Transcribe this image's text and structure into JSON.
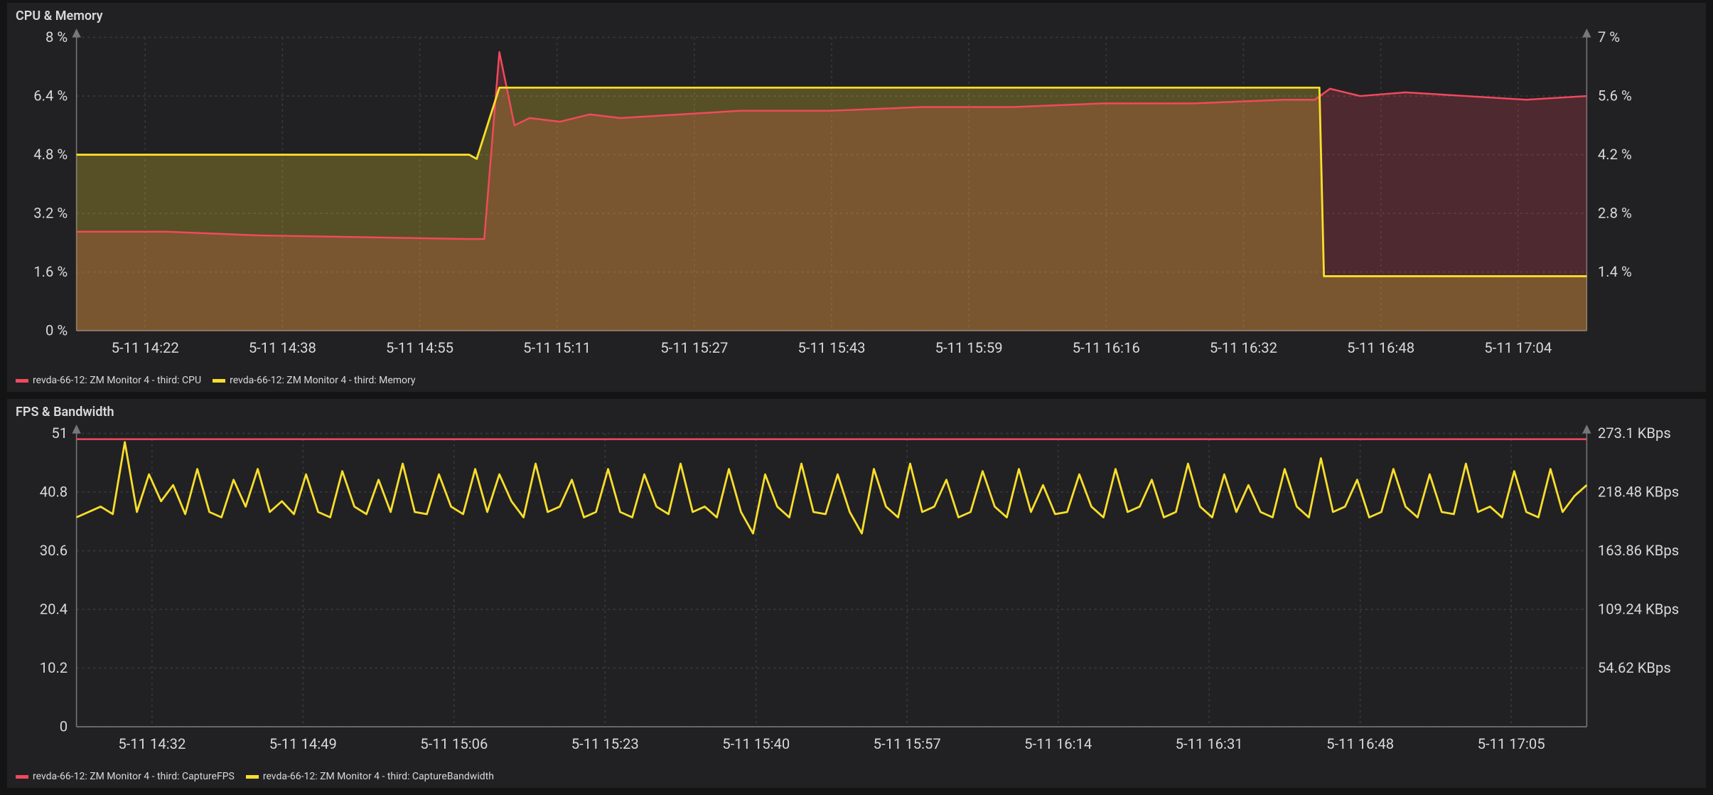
{
  "colors": {
    "background": "#141414",
    "panel_bg": "#212124",
    "text": "#d8d9da",
    "grid": "#3a3a3d",
    "axis": "#777779",
    "series_red": "#f2495c",
    "series_red_fill": "rgba(242,73,92,0.22)",
    "series_yellow": "#fade2a",
    "series_yellow_fill": "rgba(250,222,42,0.25)"
  },
  "chart1": {
    "title": "CPU & Memory",
    "type": "area",
    "x_ticks": [
      "5-11 14:22",
      "5-11 14:38",
      "5-11 14:55",
      "5-11 15:11",
      "5-11 15:27",
      "5-11 15:43",
      "5-11 15:59",
      "5-11 16:16",
      "5-11 16:32",
      "5-11 16:48",
      "5-11 17:04"
    ],
    "left_axis": {
      "label_suffix": " %",
      "ticks": [
        "0 %",
        "1.6 %",
        "3.2 %",
        "4.8 %",
        "6.4 %",
        "8 %"
      ],
      "min": 0,
      "max": 8
    },
    "right_axis": {
      "label_suffix": " %",
      "ticks": [
        "1.4 %",
        "2.8 %",
        "4.2 %",
        "5.6 %",
        "7 %"
      ],
      "min": 0,
      "max": 7
    },
    "legend": [
      {
        "label": "revda-66-12: ZM Monitor 4 - third: CPU",
        "color_key": "series_red"
      },
      {
        "label": "revda-66-12: ZM Monitor 4 - third: Memory",
        "color_key": "series_yellow"
      }
    ],
    "series": [
      {
        "name": "cpu",
        "axis": "left",
        "color_key": "series_red",
        "fill_key": "series_red_fill",
        "line_width": 1.6,
        "data": [
          [
            0,
            2.7
          ],
          [
            6,
            2.7
          ],
          [
            12,
            2.6
          ],
          [
            26,
            2.5
          ],
          [
            27,
            2.5
          ],
          [
            28,
            7.6
          ],
          [
            29,
            5.6
          ],
          [
            30,
            5.8
          ],
          [
            32,
            5.7
          ],
          [
            34,
            5.9
          ],
          [
            36,
            5.8
          ],
          [
            40,
            5.9
          ],
          [
            44,
            6.0
          ],
          [
            50,
            6.0
          ],
          [
            56,
            6.1
          ],
          [
            62,
            6.1
          ],
          [
            68,
            6.2
          ],
          [
            74,
            6.2
          ],
          [
            80,
            6.3
          ],
          [
            82,
            6.3
          ],
          [
            83,
            6.6
          ],
          [
            85,
            6.4
          ],
          [
            88,
            6.5
          ],
          [
            92,
            6.4
          ],
          [
            96,
            6.3
          ],
          [
            100,
            6.4
          ]
        ]
      },
      {
        "name": "memory",
        "axis": "right",
        "color_key": "series_yellow",
        "fill_key": "series_yellow_fill",
        "line_width": 1.8,
        "data": [
          [
            0,
            4.2
          ],
          [
            26,
            4.2
          ],
          [
            26.5,
            4.1
          ],
          [
            28,
            5.8
          ],
          [
            28.5,
            5.8
          ],
          [
            82,
            5.8
          ],
          [
            82.3,
            5.8
          ],
          [
            82.6,
            1.3
          ],
          [
            100,
            1.3
          ]
        ]
      }
    ]
  },
  "chart2": {
    "title": "FPS & Bandwidth",
    "type": "line",
    "x_ticks": [
      "5-11 14:32",
      "5-11 14:49",
      "5-11 15:06",
      "5-11 15:23",
      "5-11 15:40",
      "5-11 15:57",
      "5-11 16:14",
      "5-11 16:31",
      "5-11 16:48",
      "5-11 17:05"
    ],
    "left_axis": {
      "ticks": [
        "0",
        "10.2",
        "20.4",
        "30.6",
        "40.8",
        "51"
      ],
      "min": 0,
      "max": 51
    },
    "right_axis": {
      "ticks": [
        "54.62 KBps",
        "109.24 KBps",
        "163.86 KBps",
        "218.48 KBps",
        "273.1 KBps"
      ],
      "min": 0,
      "max": 273.1
    },
    "legend": [
      {
        "label": "revda-66-12: ZM Monitor 4 - third: CaptureFPS",
        "color_key": "series_red"
      },
      {
        "label": "revda-66-12: ZM Monitor 4 - third: CaptureBandwidth",
        "color_key": "series_yellow"
      }
    ],
    "series": [
      {
        "name": "fps",
        "axis": "left",
        "color_key": "series_red",
        "line_width": 1.6,
        "data": [
          [
            0,
            50
          ],
          [
            10,
            50
          ],
          [
            20,
            50
          ],
          [
            30,
            50
          ],
          [
            40,
            50
          ],
          [
            50,
            50
          ],
          [
            60,
            50
          ],
          [
            70,
            50
          ],
          [
            80,
            50
          ],
          [
            90,
            50
          ],
          [
            100,
            50
          ]
        ]
      },
      {
        "name": "bandwidth",
        "axis": "right",
        "color_key": "series_yellow",
        "line_width": 1.8,
        "data": [
          [
            0,
            195
          ],
          [
            0.8,
            200
          ],
          [
            1.6,
            205
          ],
          [
            2.4,
            198
          ],
          [
            3.2,
            265
          ],
          [
            4,
            200
          ],
          [
            4.8,
            235
          ],
          [
            5.6,
            210
          ],
          [
            6.4,
            225
          ],
          [
            7.2,
            198
          ],
          [
            8,
            240
          ],
          [
            8.8,
            200
          ],
          [
            9.6,
            195
          ],
          [
            10.4,
            230
          ],
          [
            11.2,
            205
          ],
          [
            12,
            240
          ],
          [
            12.8,
            200
          ],
          [
            13.6,
            210
          ],
          [
            14.4,
            198
          ],
          [
            15.2,
            235
          ],
          [
            16,
            200
          ],
          [
            16.8,
            195
          ],
          [
            17.6,
            238
          ],
          [
            18.4,
            205
          ],
          [
            19.2,
            198
          ],
          [
            20,
            230
          ],
          [
            20.8,
            200
          ],
          [
            21.6,
            245
          ],
          [
            22.4,
            200
          ],
          [
            23.2,
            198
          ],
          [
            24,
            235
          ],
          [
            24.8,
            205
          ],
          [
            25.6,
            198
          ],
          [
            26.4,
            240
          ],
          [
            27.2,
            200
          ],
          [
            28,
            235
          ],
          [
            28.8,
            210
          ],
          [
            29.6,
            195
          ],
          [
            30.4,
            245
          ],
          [
            31.2,
            200
          ],
          [
            32,
            205
          ],
          [
            32.8,
            230
          ],
          [
            33.6,
            195
          ],
          [
            34.4,
            200
          ],
          [
            35.2,
            240
          ],
          [
            36,
            200
          ],
          [
            36.8,
            195
          ],
          [
            37.6,
            235
          ],
          [
            38.4,
            205
          ],
          [
            39.2,
            198
          ],
          [
            40,
            245
          ],
          [
            40.8,
            200
          ],
          [
            41.6,
            205
          ],
          [
            42.4,
            195
          ],
          [
            43.2,
            240
          ],
          [
            44,
            200
          ],
          [
            44.8,
            180
          ],
          [
            45.6,
            235
          ],
          [
            46.4,
            205
          ],
          [
            47.2,
            195
          ],
          [
            48,
            245
          ],
          [
            48.8,
            200
          ],
          [
            49.6,
            198
          ],
          [
            50.4,
            235
          ],
          [
            51.2,
            200
          ],
          [
            52,
            180
          ],
          [
            52.8,
            240
          ],
          [
            53.6,
            205
          ],
          [
            54.4,
            195
          ],
          [
            55.2,
            245
          ],
          [
            56,
            200
          ],
          [
            56.8,
            205
          ],
          [
            57.6,
            230
          ],
          [
            58.4,
            195
          ],
          [
            59.2,
            200
          ],
          [
            60,
            238
          ],
          [
            60.8,
            205
          ],
          [
            61.6,
            195
          ],
          [
            62.4,
            240
          ],
          [
            63.2,
            200
          ],
          [
            64,
            225
          ],
          [
            64.8,
            198
          ],
          [
            65.6,
            200
          ],
          [
            66.4,
            235
          ],
          [
            67.2,
            205
          ],
          [
            68,
            195
          ],
          [
            68.8,
            240
          ],
          [
            69.6,
            200
          ],
          [
            70.4,
            205
          ],
          [
            71.2,
            230
          ],
          [
            72,
            195
          ],
          [
            72.8,
            200
          ],
          [
            73.6,
            245
          ],
          [
            74.4,
            205
          ],
          [
            75.2,
            195
          ],
          [
            76,
            235
          ],
          [
            76.8,
            200
          ],
          [
            77.6,
            225
          ],
          [
            78.4,
            200
          ],
          [
            79.2,
            195
          ],
          [
            80,
            240
          ],
          [
            80.8,
            205
          ],
          [
            81.6,
            195
          ],
          [
            82.4,
            250
          ],
          [
            83.2,
            200
          ],
          [
            84,
            205
          ],
          [
            84.8,
            230
          ],
          [
            85.6,
            195
          ],
          [
            86.4,
            200
          ],
          [
            87.2,
            240
          ],
          [
            88,
            205
          ],
          [
            88.8,
            195
          ],
          [
            89.6,
            235
          ],
          [
            90.4,
            200
          ],
          [
            91.2,
            198
          ],
          [
            92,
            245
          ],
          [
            92.8,
            200
          ],
          [
            93.6,
            205
          ],
          [
            94.4,
            195
          ],
          [
            95.2,
            238
          ],
          [
            96,
            200
          ],
          [
            96.8,
            195
          ],
          [
            97.6,
            240
          ],
          [
            98.4,
            200
          ],
          [
            99.2,
            215
          ],
          [
            100,
            225
          ]
        ]
      }
    ]
  }
}
